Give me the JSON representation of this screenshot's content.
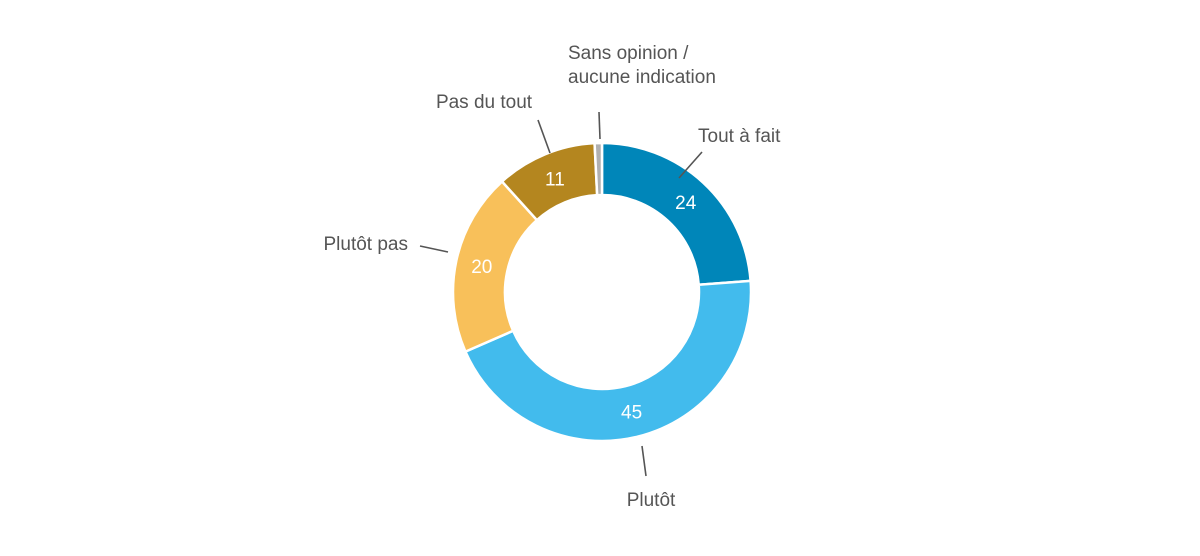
{
  "chart_data": {
    "type": "pie",
    "variant": "donut",
    "categories": [
      "Tout à fait",
      "Plutôt",
      "Plutôt pas",
      "Pas du tout",
      "Sans opinion / aucune indication"
    ],
    "label_lines": [
      [
        "Tout à fait"
      ],
      [
        "Plutôt"
      ],
      [
        "Plutôt pas"
      ],
      [
        "Pas du tout"
      ],
      [
        "Sans opinion /",
        "aucune indication"
      ]
    ],
    "values": [
      24,
      45,
      20,
      11,
      0.8
    ],
    "value_labels": [
      "24",
      "45",
      "20",
      "11",
      ""
    ],
    "colors": [
      "#0086b9",
      "#42bbed",
      "#f8c05a",
      "#b4861f",
      "#b0b0b0"
    ]
  }
}
